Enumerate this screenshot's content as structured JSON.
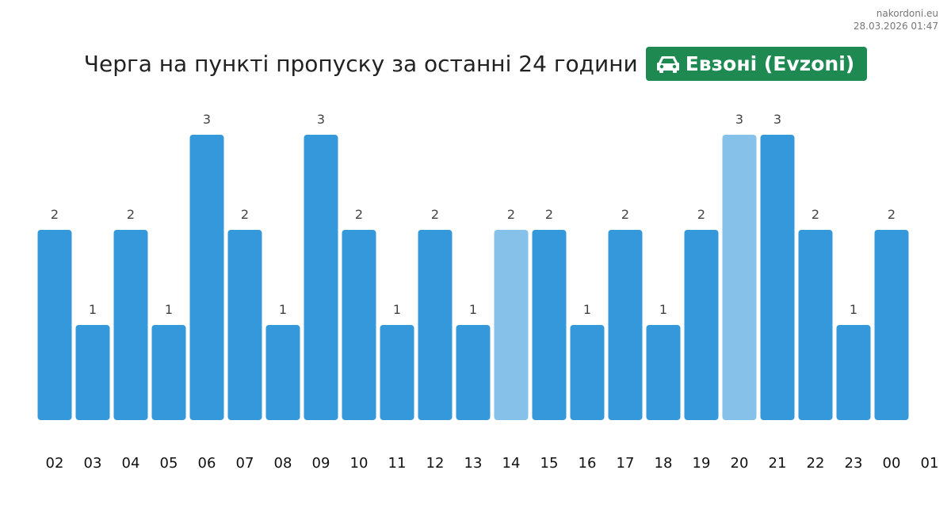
{
  "source": {
    "site": "nakordoni.eu",
    "timestamp": "28.03.2026 01:47"
  },
  "header": {
    "title": "Черга на пункті пропуску за останні 24 години",
    "crossing_name": "Евзоні (Evzoni)",
    "crossing_icon": "car-icon",
    "badge_color": "#1e8a52"
  },
  "chart_data": {
    "type": "bar",
    "categories": [
      "02",
      "03",
      "04",
      "05",
      "06",
      "07",
      "08",
      "09",
      "10",
      "11",
      "12",
      "13",
      "14",
      "15",
      "16",
      "17",
      "18",
      "19",
      "20",
      "21",
      "22",
      "23",
      "00"
    ],
    "values": [
      2,
      1,
      2,
      1,
      3,
      2,
      1,
      3,
      2,
      1,
      2,
      1,
      2,
      2,
      1,
      2,
      1,
      2,
      3,
      3,
      2,
      1,
      2
    ],
    "highlighted": [
      "14",
      "20"
    ],
    "extra_tick_labels": [
      "01"
    ],
    "ylim": [
      0,
      3
    ],
    "grid": false,
    "legend": "none",
    "colors": {
      "bar": "#3498db",
      "highlight": "#85c1e9"
    }
  }
}
